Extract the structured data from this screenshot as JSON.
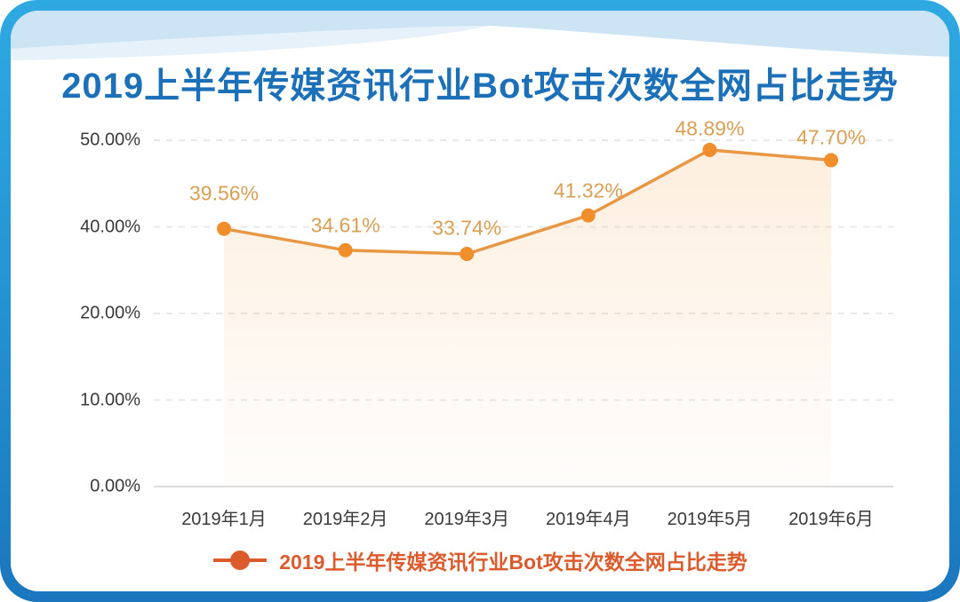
{
  "title": "2019上半年传媒资讯行业Bot攻击次数全网占比走势",
  "legend": {
    "marker": "line-dot",
    "label": "2019上半年传媒资讯行业Bot攻击次数全网占比走势"
  },
  "chart_data": {
    "type": "line",
    "title": "2019上半年传媒资讯行业Bot攻击次数全网占比走势",
    "categories": [
      "2019年1月",
      "2019年2月",
      "2019年3月",
      "2019年4月",
      "2019年5月",
      "2019年6月"
    ],
    "values": [
      39.56,
      34.61,
      33.74,
      41.32,
      48.89,
      47.7
    ],
    "value_labels": [
      "39.56%",
      "34.61%",
      "33.74%",
      "41.32%",
      "48.89%",
      "47.70%"
    ],
    "yticks": [
      0,
      10,
      20,
      40,
      50
    ],
    "ytick_labels": [
      "0.00%",
      "10.00%",
      "20.00%",
      "40.00%",
      "50.00%"
    ],
    "ylim": [
      0,
      50
    ],
    "grid": "horizontal-dashed",
    "area_fill": true,
    "legend_position": "bottom",
    "legend_label": "2019上半年传媒资讯行业Bot攻击次数全网占比走势"
  },
  "colors": {
    "frame_top": "#2FA9E2",
    "frame_bottom": "#1B76BE",
    "wave": "#CDE4F5",
    "wave_light": "#E0EEF9",
    "title": "#1C70B8",
    "axis_text": "#3A3A3A",
    "gridline": "#E9E9E9",
    "axis_line": "#DCDCDC",
    "line": "#E89845",
    "dot": "#F08E2C",
    "value_label": "#D9A055",
    "area_top": "rgba(243,166,77,0.18)",
    "area_bottom": "rgba(243,166,77,0.02)",
    "legend": "#DC5B2C"
  }
}
